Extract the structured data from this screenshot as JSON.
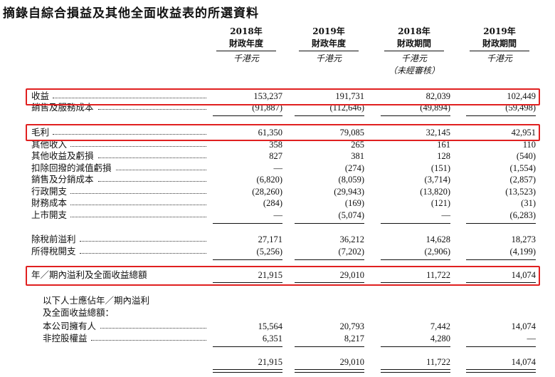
{
  "title": "摘錄自綜合損益及其他全面收益表的所選資料",
  "columns": [
    {
      "year": "2018年",
      "period": "財政年度",
      "unit": "千港元",
      "note": ""
    },
    {
      "year": "2019年",
      "period": "財政年度",
      "unit": "千港元",
      "note": ""
    },
    {
      "year": "2018年",
      "period": "財政期間",
      "unit": "千港元",
      "note": "（未經審核）"
    },
    {
      "year": "2019年",
      "period": "財政期間",
      "unit": "千港元",
      "note": ""
    }
  ],
  "rows": {
    "revenue": {
      "label": "收益",
      "values": [
        "153,237",
        "191,731",
        "82,039",
        "102,449"
      ]
    },
    "cost": {
      "label": "銷售及服務成本",
      "values": [
        "(91,887)",
        "(112,646)",
        "(49,894)",
        "(59,498)"
      ]
    },
    "gross": {
      "label": "毛利",
      "values": [
        "61,350",
        "79,085",
        "32,145",
        "42,951"
      ]
    },
    "other_income": {
      "label": "其他收入",
      "values": [
        "358",
        "265",
        "161",
        "110"
      ]
    },
    "other_gains": {
      "label": "其他收益及虧損",
      "values": [
        "827",
        "381",
        "128",
        "(540)"
      ]
    },
    "impairment": {
      "label": "扣除回撥的減值虧損",
      "values": [
        "—",
        "(274)",
        "(151)",
        "(1,554)"
      ]
    },
    "selling": {
      "label": "銷售及分銷成本",
      "values": [
        "(6,820)",
        "(8,059)",
        "(3,714)",
        "(2,857)"
      ]
    },
    "admin": {
      "label": "行政開支",
      "values": [
        "(28,260)",
        "(29,943)",
        "(13,820)",
        "(13,523)"
      ]
    },
    "finance": {
      "label": "財務成本",
      "values": [
        "(284)",
        "(169)",
        "(121)",
        "(31)"
      ]
    },
    "listing": {
      "label": "上市開支",
      "values": [
        "—",
        "(5,074)",
        "—",
        "(6,283)"
      ]
    },
    "pbt": {
      "label": "除稅前溢利",
      "values": [
        "27,171",
        "36,212",
        "14,628",
        "18,273"
      ]
    },
    "tax": {
      "label": "所得稅開支",
      "values": [
        "(5,256)",
        "(7,202)",
        "(2,906)",
        "(4,199)"
      ]
    },
    "profit": {
      "label": "年／期內溢利及全面收益總額",
      "values": [
        "21,915",
        "29,010",
        "11,722",
        "14,074"
      ]
    },
    "attr_head1": {
      "label": "以下人士應佔年／期內溢利"
    },
    "attr_head2": {
      "label": "及全面收益總額："
    },
    "owners": {
      "label": "本公司擁有人",
      "values": [
        "15,564",
        "20,793",
        "7,442",
        "14,074"
      ]
    },
    "nci": {
      "label": "非控股權益",
      "values": [
        "6,351",
        "8,217",
        "4,280",
        "—"
      ]
    },
    "total": {
      "label": "",
      "values": [
        "21,915",
        "29,010",
        "11,722",
        "14,074"
      ]
    }
  },
  "highlight_color": "#e02020"
}
